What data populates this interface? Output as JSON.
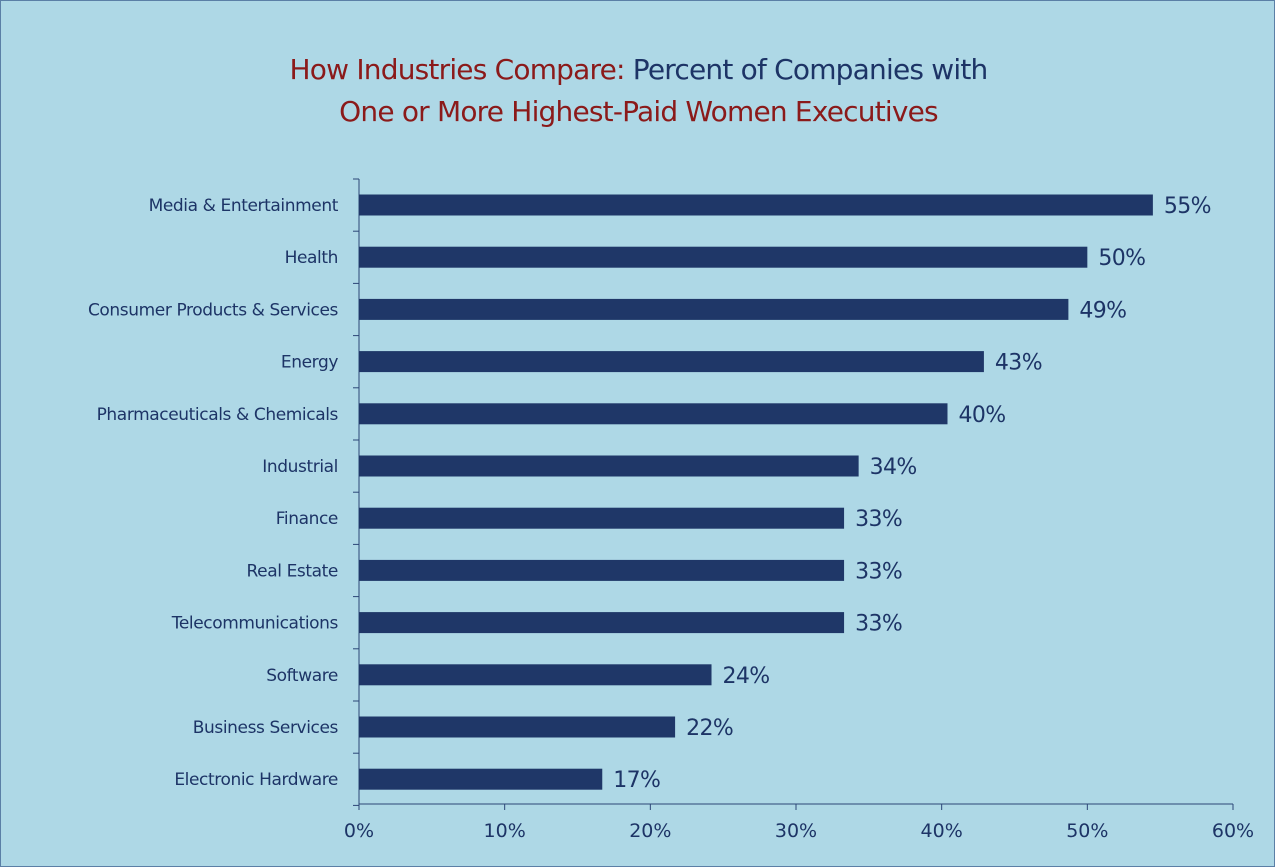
{
  "chart_data": {
    "type": "bar",
    "orientation": "horizontal",
    "title_part1": "How Industries Compare:",
    "title_part2": "Percent of Companies with",
    "title_part3": "One or More Highest-Paid Women Executives",
    "categories": [
      "Media & Entertainment",
      "Health",
      "Consumer Products & Services",
      "Energy",
      "Pharmaceuticals & Chemicals",
      "Industrial",
      "Finance",
      "Real Estate",
      "Telecommunications",
      "Software",
      "Business Services",
      "Electronic Hardware"
    ],
    "values": [
      54.5,
      50,
      48.7,
      42.9,
      40.4,
      34.3,
      33.3,
      33.3,
      33.3,
      24.2,
      21.7,
      16.7
    ],
    "value_labels": [
      "55%",
      "50%",
      "49%",
      "43%",
      "40%",
      "34%",
      "33%",
      "33%",
      "33%",
      "24%",
      "22%",
      "17%"
    ],
    "xlim": [
      0,
      60
    ],
    "x_ticks": [
      0,
      10,
      20,
      30,
      40,
      50,
      60
    ],
    "x_tick_labels": [
      "0%",
      "10%",
      "20%",
      "30%",
      "40%",
      "50%",
      "60%"
    ],
    "xlabel": "",
    "ylabel": "",
    "grid": false,
    "legend": "none",
    "colors": {
      "bar": "#1f3768",
      "background": "#aed8e6",
      "title_red": "#8b1a1a",
      "title_navy": "#1d3466",
      "axis": "#2c4677"
    }
  }
}
